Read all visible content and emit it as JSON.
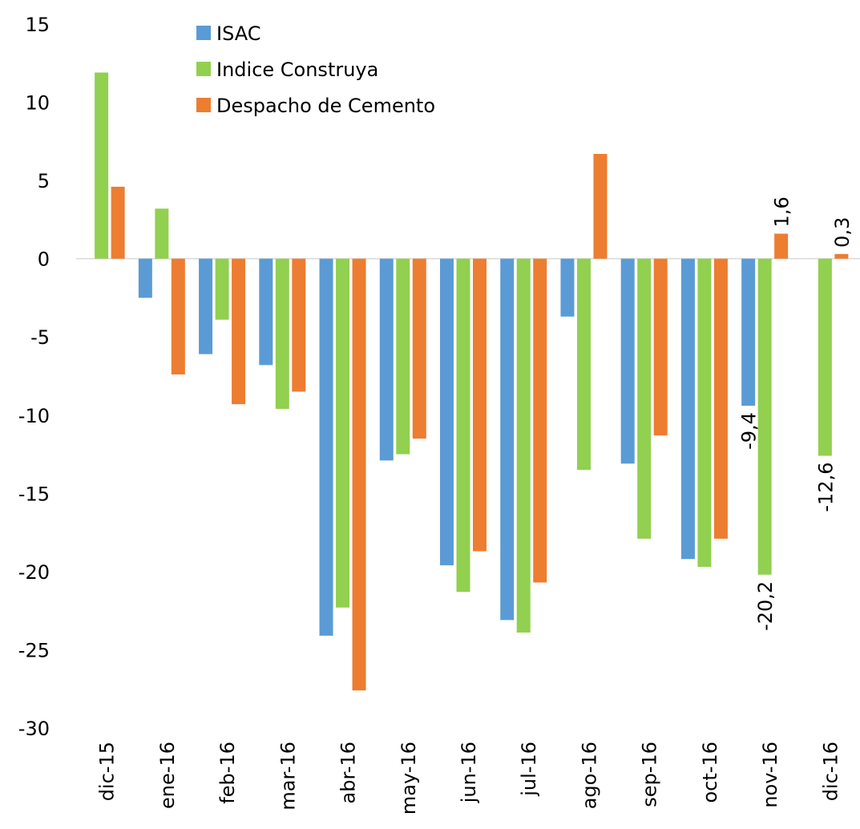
{
  "chart_data": {
    "type": "bar",
    "categories": [
      "dic-15",
      "ene-16",
      "feb-16",
      "mar-16",
      "abr-16",
      "may-16",
      "jun-16",
      "jul-16",
      "ago-16",
      "sep-16",
      "oct-16",
      "nov-16",
      "dic-16"
    ],
    "series": [
      {
        "name": "ISAC",
        "color": "#5b9bd5",
        "values": [
          null,
          -2.5,
          -6.1,
          -6.8,
          -24.1,
          -12.9,
          -19.6,
          -23.1,
          -3.7,
          -13.1,
          -19.2,
          -9.4,
          null
        ],
        "value_labels": [
          null,
          null,
          null,
          null,
          null,
          null,
          null,
          null,
          null,
          null,
          null,
          "-9,4",
          null
        ]
      },
      {
        "name": "Indice Construya",
        "color": "#92d050",
        "values": [
          11.9,
          3.2,
          -3.9,
          -9.6,
          -22.3,
          -12.5,
          -21.3,
          -23.9,
          -13.5,
          -17.9,
          -19.7,
          -20.2,
          -12.6
        ],
        "value_labels": [
          null,
          null,
          null,
          null,
          null,
          null,
          null,
          null,
          null,
          null,
          null,
          "-20,2",
          "-12,6"
        ]
      },
      {
        "name": "Despacho de Cemento",
        "color": "#ed7d31",
        "values": [
          4.6,
          -7.4,
          -9.3,
          -8.5,
          -27.6,
          -11.5,
          -18.7,
          -20.7,
          6.7,
          -11.3,
          -17.9,
          1.6,
          0.3
        ],
        "value_labels": [
          null,
          null,
          null,
          null,
          null,
          null,
          null,
          null,
          null,
          null,
          null,
          "1,6",
          "0,3"
        ]
      }
    ],
    "ylim": [
      -30,
      15
    ],
    "yticks": [
      -30,
      -25,
      -20,
      -15,
      -10,
      -5,
      0,
      5,
      10,
      15
    ],
    "legend": "top"
  }
}
